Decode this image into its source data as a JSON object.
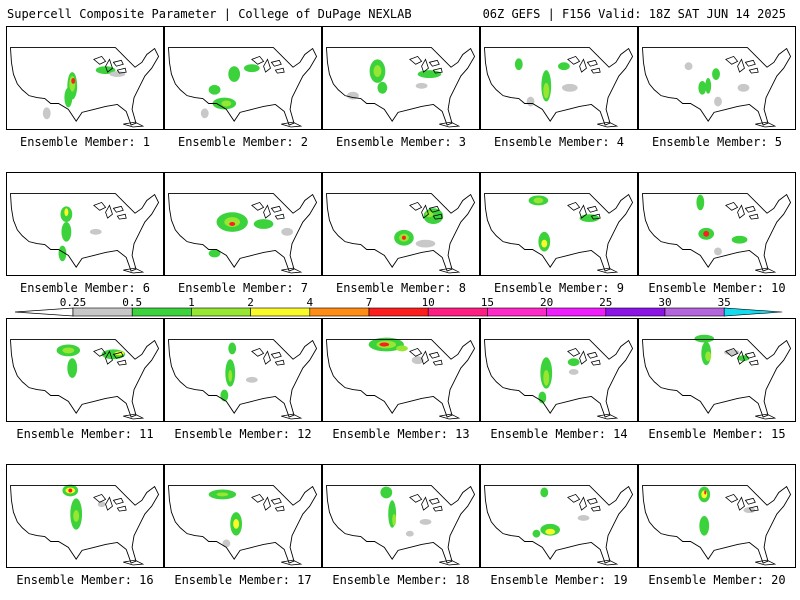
{
  "header": {
    "left_title": "Supercell Composite Parameter | College of DuPage NEXLAB",
    "right_title": "06Z GEFS | F156 Valid: 18Z SAT JUN 14 2025"
  },
  "legend": {
    "levels": [
      "0.25",
      "0.5",
      "1",
      "2",
      "4",
      "7",
      "10",
      "15",
      "20",
      "25",
      "30",
      "35"
    ],
    "colors": [
      "#c8c8c8",
      "#3cd23c",
      "#96e632",
      "#fafa28",
      "#ff8c14",
      "#ff1e1e",
      "#ff1e82",
      "#ff28c8",
      "#f01eff",
      "#8c14e6",
      "#b464dc",
      "#14dcf0"
    ]
  },
  "panels": [
    {
      "label": "Ensemble Member: 1"
    },
    {
      "label": "Ensemble Member: 2"
    },
    {
      "label": "Ensemble Member: 3"
    },
    {
      "label": "Ensemble Member: 4"
    },
    {
      "label": "Ensemble Member: 5"
    },
    {
      "label": "Ensemble Member: 6"
    },
    {
      "label": "Ensemble Member: 7"
    },
    {
      "label": "Ensemble Member: 8"
    },
    {
      "label": "Ensemble Member: 9"
    },
    {
      "label": "Ensemble Member: 10"
    },
    {
      "label": "Ensemble Member: 11"
    },
    {
      "label": "Ensemble Member: 12"
    },
    {
      "label": "Ensemble Member: 13"
    },
    {
      "label": "Ensemble Member: 14"
    },
    {
      "label": "Ensemble Member: 15"
    },
    {
      "label": "Ensemble Member: 16"
    },
    {
      "label": "Ensemble Member: 17"
    },
    {
      "label": "Ensemble Member: 18"
    },
    {
      "label": "Ensemble Member: 19"
    },
    {
      "label": "Ensemble Member: 20"
    }
  ]
}
